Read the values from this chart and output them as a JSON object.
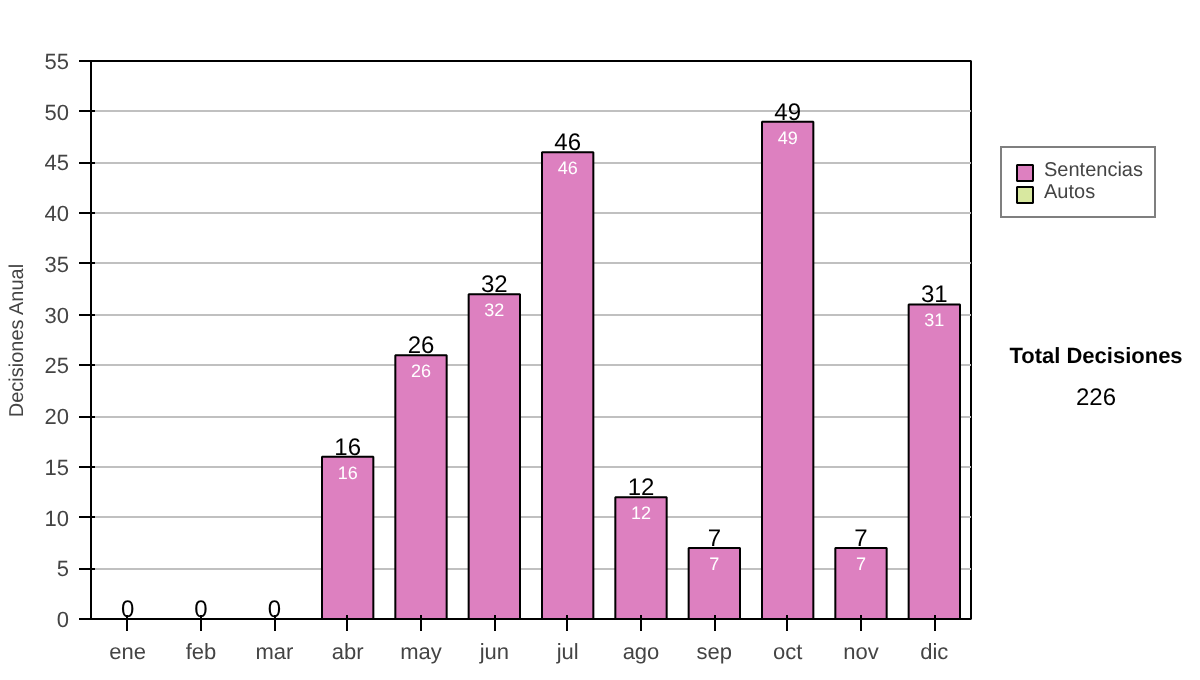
{
  "chart_data": {
    "type": "bar",
    "stacked": true,
    "ylabel": "Decisiones Anual",
    "categories": [
      "ene",
      "feb",
      "mar",
      "abr",
      "may",
      "jun",
      "jul",
      "ago",
      "sep",
      "oct",
      "nov",
      "dic"
    ],
    "series": [
      {
        "name": "Sentencias",
        "color": "#dd80c0",
        "values": [
          0,
          0,
          0,
          16,
          26,
          32,
          46,
          12,
          7,
          49,
          7,
          31
        ],
        "value_labels": [
          null,
          null,
          null,
          "16",
          "26",
          "32",
          "46",
          "12",
          "7",
          "49",
          "7",
          "31"
        ]
      },
      {
        "name": "Autos",
        "color": "#d8e8a0",
        "values": [
          0,
          0,
          0,
          0,
          0,
          0,
          0,
          0,
          0,
          0,
          0,
          0
        ]
      }
    ],
    "totals": [
      "0",
      "0",
      "0",
      "16",
      "26",
      "32",
      "46",
      "12",
      "7",
      "49",
      "7",
      "31"
    ],
    "ylim": [
      0,
      55
    ],
    "yticks": [
      0,
      5,
      10,
      15,
      20,
      25,
      30,
      35,
      40,
      45,
      50,
      55
    ],
    "grid": "y",
    "legend": "right",
    "annotations": [
      "Total Decisiones",
      "226"
    ]
  }
}
